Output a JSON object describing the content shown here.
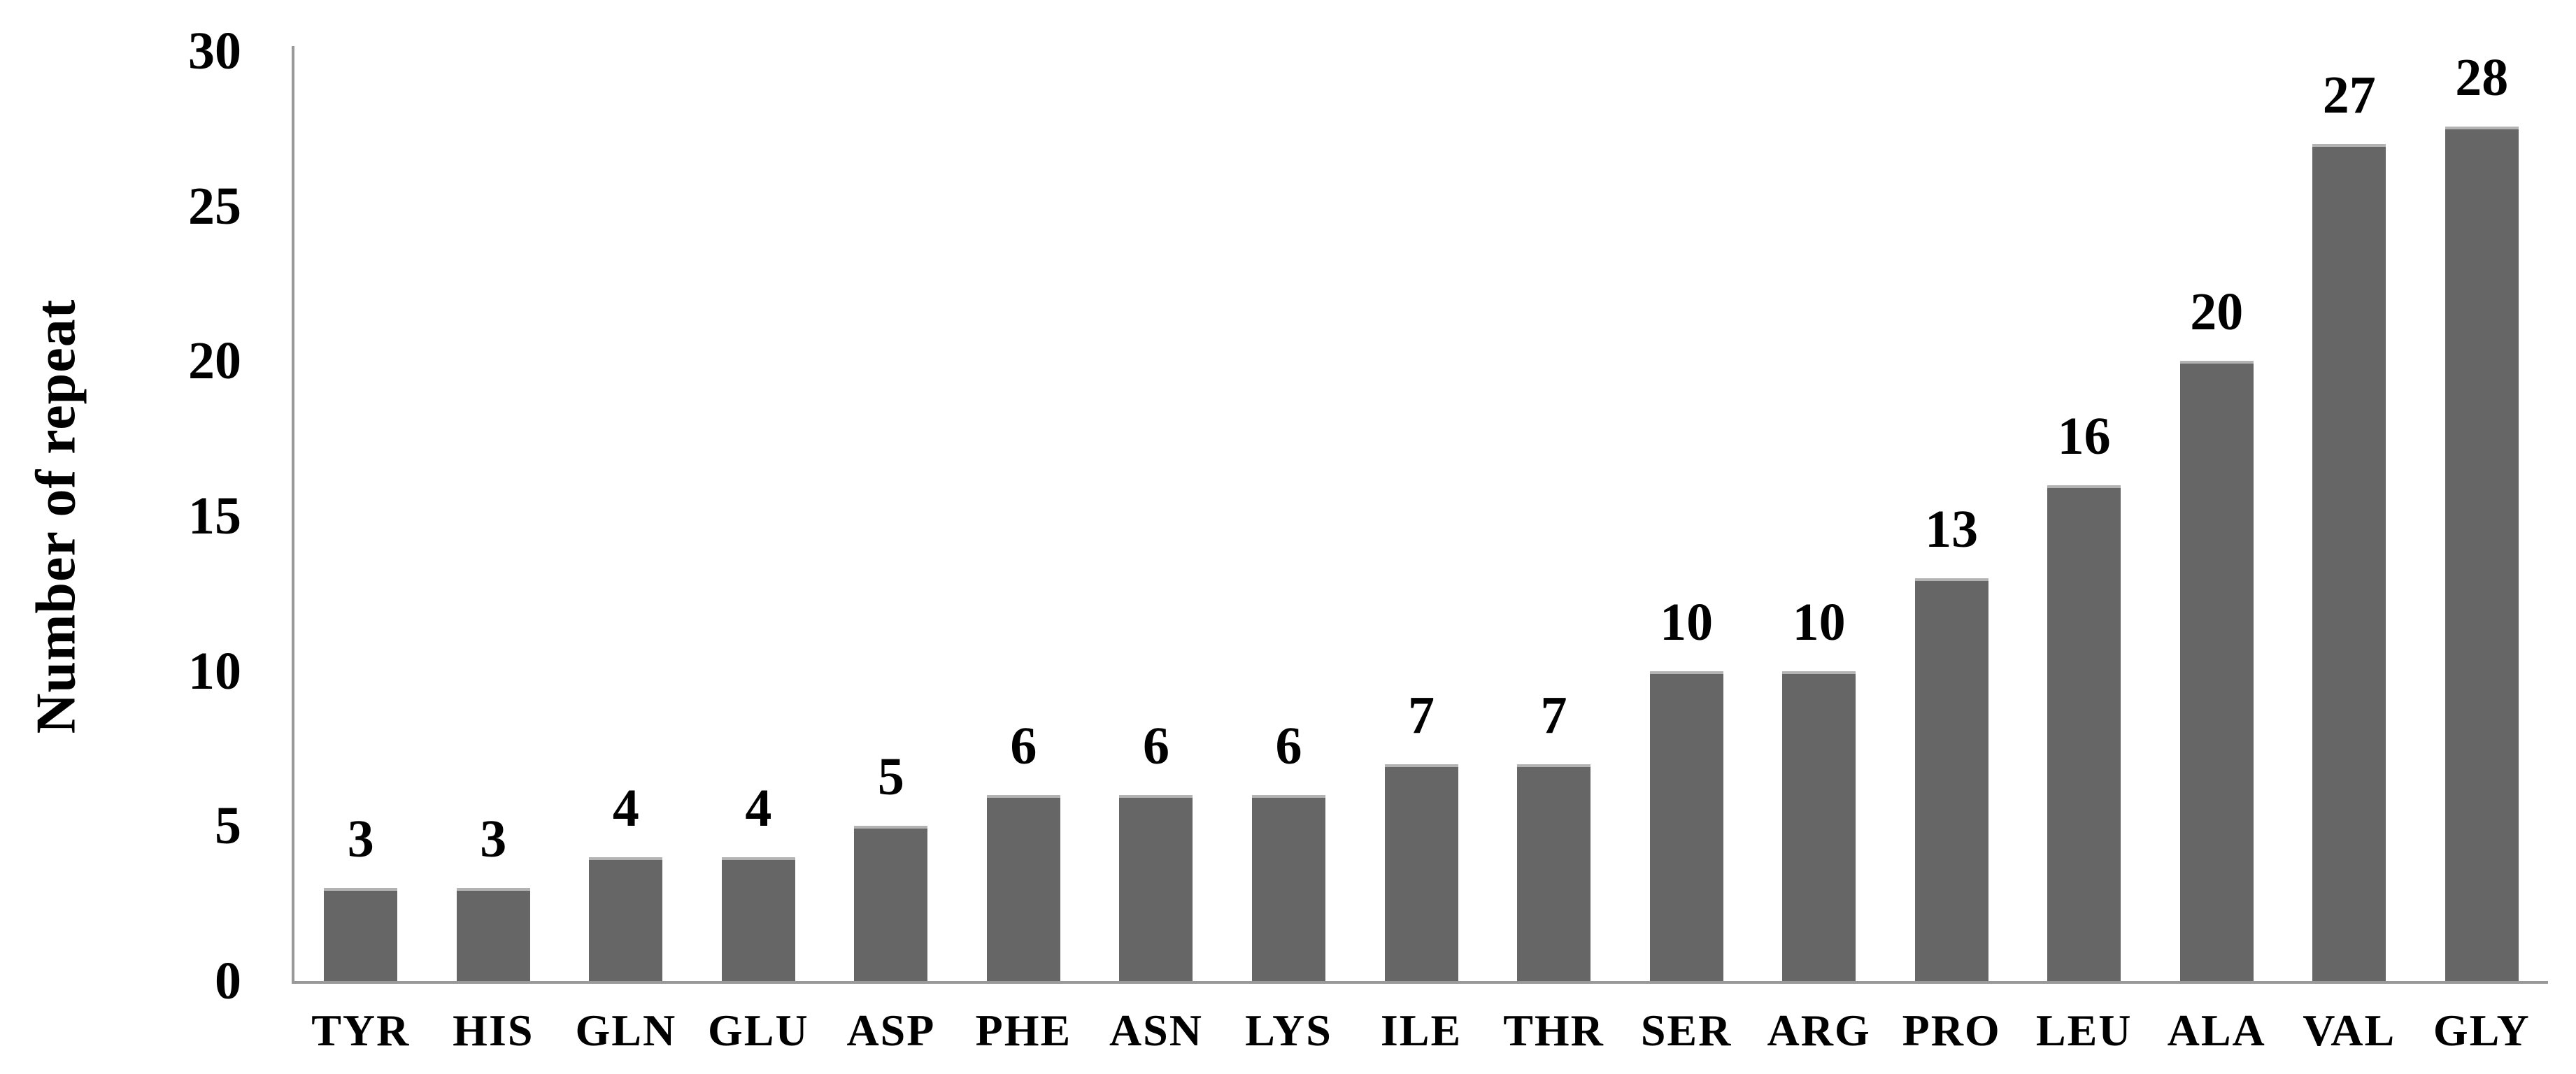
{
  "chart_data": {
    "type": "bar",
    "title": "",
    "xlabel": "",
    "ylabel": "Number of repeat",
    "categories": [
      "TYR",
      "HIS",
      "GLN",
      "GLU",
      "ASP",
      "PHE",
      "ASN",
      "LYS",
      "ILE",
      "THR",
      "SER",
      "ARG",
      "PRO",
      "LEU",
      "ALA",
      "VAL",
      "GLY"
    ],
    "values": [
      3,
      3,
      4,
      4,
      5,
      6,
      6,
      6,
      7,
      7,
      10,
      10,
      13,
      16,
      20,
      27,
      28
    ],
    "data_labels": [
      "3",
      "3",
      "4",
      "4",
      "5",
      "6",
      "6",
      "6",
      "7",
      "7",
      "10",
      "10",
      "13",
      "16",
      "20",
      "27",
      "28"
    ],
    "ylim": [
      0,
      30
    ],
    "yticks": [
      "0",
      "5",
      "10",
      "15",
      "20",
      "25",
      "30"
    ],
    "grid": false,
    "legend": false,
    "colors": {
      "bar_fill": "#666666",
      "bar_top_highlight": "#b3b3b3",
      "axis_line": "#999999",
      "text": "#000000",
      "background": "#ffffff"
    }
  }
}
